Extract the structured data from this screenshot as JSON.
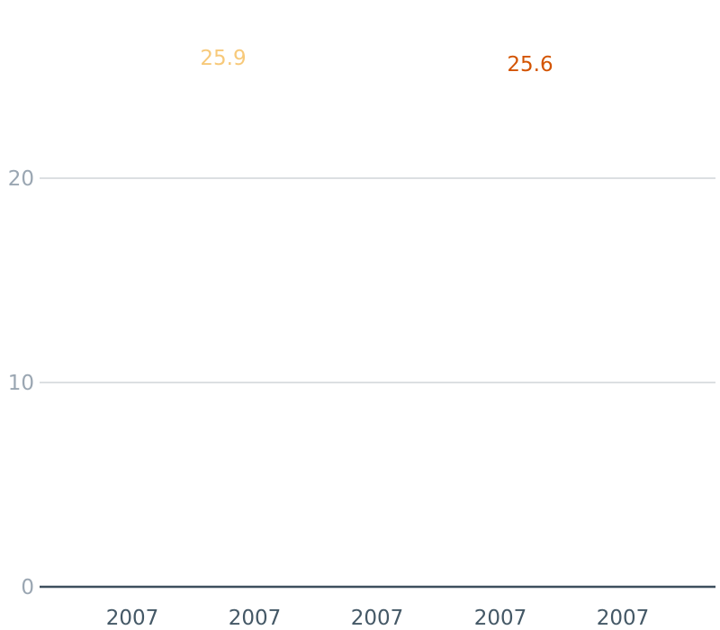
{
  "chart_data": {
    "type": "line",
    "title": "",
    "xlabel": "",
    "ylabel": "",
    "x_ticks": [
      "2007",
      "2007",
      "2007",
      "2007",
      "2007"
    ],
    "y_ticks": [
      "0",
      "10",
      "20"
    ],
    "ylim": [
      0,
      26
    ],
    "grid": true,
    "series": [
      {
        "x": "2007",
        "value": 25.9,
        "label": "25.9",
        "color": "#f7c97a"
      },
      {
        "x": "2007",
        "value": 25.6,
        "label": "25.6",
        "color": "#d35400"
      }
    ]
  }
}
